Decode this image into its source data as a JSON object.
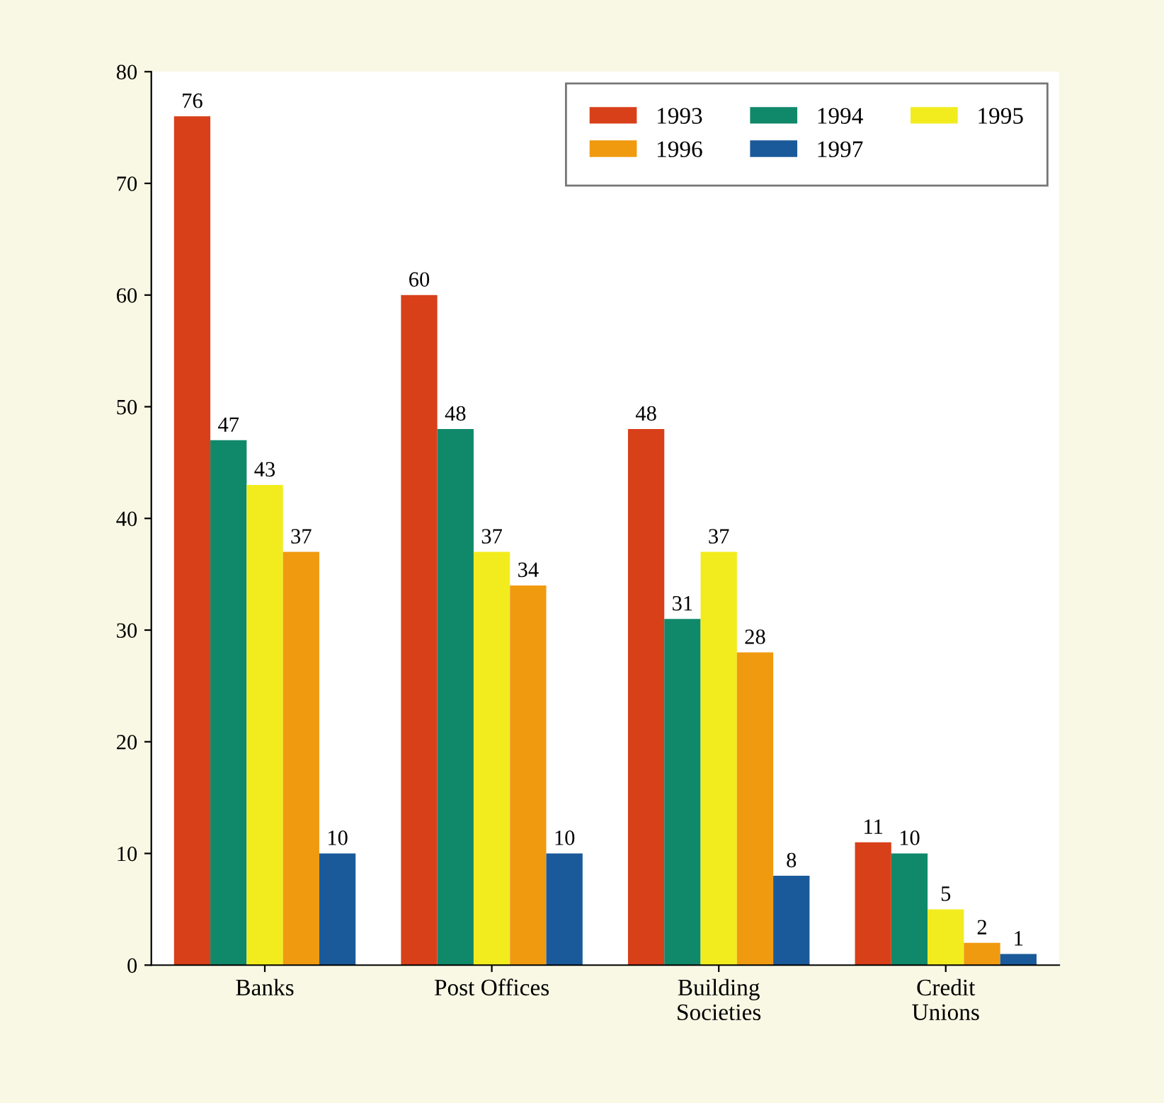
{
  "chart_data": {
    "type": "bar",
    "categories": [
      "Banks",
      "Post Offices",
      "Building\nSocieties",
      "Credit\nUnions"
    ],
    "series": [
      {
        "name": "1993",
        "color": "#d8401a",
        "values": [
          76,
          60,
          48,
          11
        ]
      },
      {
        "name": "1994",
        "color": "#10896a",
        "values": [
          47,
          48,
          31,
          10
        ]
      },
      {
        "name": "1995",
        "color": "#f2ec1e",
        "values": [
          43,
          37,
          37,
          5
        ]
      },
      {
        "name": "1996",
        "color": "#f09a10",
        "values": [
          37,
          34,
          28,
          2
        ]
      },
      {
        "name": "1997",
        "color": "#1b5a9a",
        "values": [
          10,
          10,
          8,
          1
        ]
      }
    ],
    "ylim": [
      0,
      80
    ],
    "yticks": [
      0,
      10,
      20,
      30,
      40,
      50,
      60,
      70,
      80
    ],
    "data_labels": true,
    "grid": false,
    "legend": "top right"
  }
}
